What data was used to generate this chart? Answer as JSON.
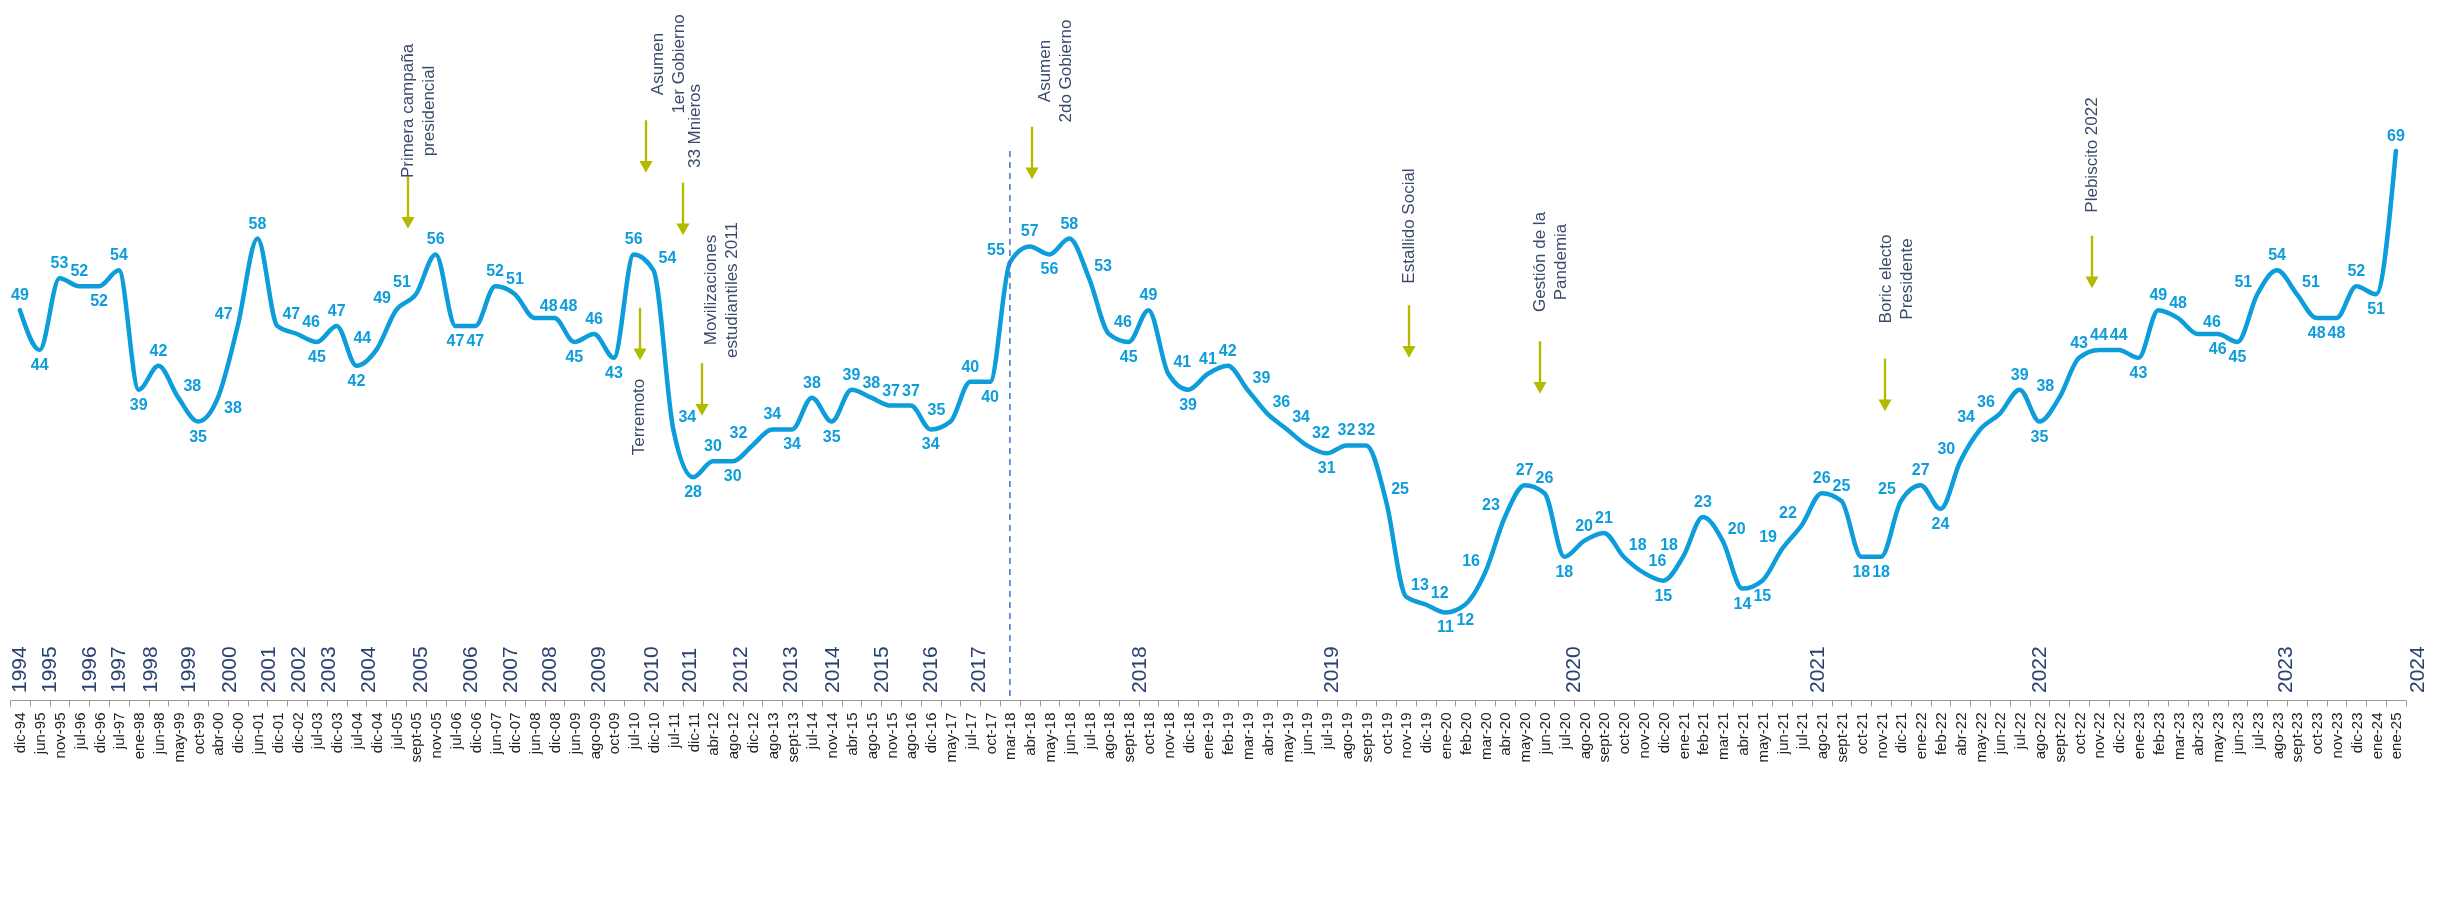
{
  "chart_data": {
    "type": "line",
    "color": "#0d9ddb",
    "data_labels": true,
    "line_style": "solid",
    "grid": false,
    "tick_labels": "x",
    "categories": [
      "dic-94",
      "jun-95",
      "nov-95",
      "jul-96",
      "dic-96",
      "jul-97",
      "ene-98",
      "jun-98",
      "may-99",
      "oct-99",
      "abr-00",
      "dic-00",
      "jun-01",
      "dic-01",
      "dic-02",
      "jul-03",
      "dic-03",
      "jul-04",
      "dic-04",
      "jul-05",
      "sept-05",
      "nov-05",
      "jul-06",
      "dic-06",
      "jun-07",
      "dic-07",
      "jun-08",
      "dic-08",
      "jun-09",
      "ago-09",
      "oct-09",
      "jul-10",
      "dic-10",
      "jul-11",
      "dic-11",
      "abr-12",
      "ago-12",
      "dic-12",
      "ago-13",
      "sept-13",
      "jul-14",
      "nov-14",
      "abr-15",
      "ago-15",
      "nov-15",
      "ago-16",
      "dic-16",
      "may-17",
      "jul-17",
      "oct-17",
      "mar-18",
      "abr-18",
      "may-18",
      "jun-18",
      "jul-18",
      "ago-18",
      "sept-18",
      "oct-18",
      "nov-18",
      "dic-18",
      "ene-19",
      "feb-19",
      "mar-19",
      "abr-19",
      "may-19",
      "jun-19",
      "jul-19",
      "ago-19",
      "sept-19",
      "oct-19",
      "nov-19",
      "dic-19",
      "ene-20",
      "feb-20",
      "mar-20",
      "abr-20",
      "may-20",
      "jun-20",
      "jul-20",
      "ago-20",
      "sept-20",
      "oct-20",
      "nov-20",
      "dic-20",
      "ene-21",
      "feb-21",
      "mar-21",
      "abr-21",
      "may-21",
      "jun-21",
      "jul-21",
      "ago-21",
      "sept-21",
      "oct-21",
      "nov-21",
      "dic-21",
      "ene-22",
      "feb-22",
      "abr-22",
      "may-22",
      "jun-22",
      "jul-22",
      "ago-22",
      "sept-22",
      "oct-22",
      "nov-22",
      "dic-22",
      "ene-23",
      "feb-23",
      "mar-23",
      "abr-23",
      "may-23",
      "jun-23",
      "jul-23",
      "ago-23",
      "sept-23",
      "oct-23",
      "nov-23",
      "dic-23",
      "ene-24",
      "ene-25"
    ],
    "values": [
      49,
      44,
      53,
      52,
      52,
      54,
      39,
      42,
      38,
      35,
      38,
      47,
      58,
      47,
      46,
      45,
      47,
      42,
      44,
      49,
      51,
      56,
      47,
      47,
      52,
      51,
      48,
      48,
      45,
      46,
      43,
      56,
      54,
      34,
      28,
      30,
      30,
      32,
      34,
      34,
      38,
      35,
      39,
      38,
      37,
      37,
      34,
      35,
      40,
      40,
      55,
      57,
      56,
      58,
      53,
      46,
      45,
      49,
      41,
      39,
      41,
      42,
      39,
      36,
      34,
      32,
      31,
      32,
      32,
      25,
      13,
      12,
      11,
      12,
      16,
      23,
      27,
      26,
      18,
      20,
      21,
      18,
      16,
      15,
      18,
      23,
      20,
      14,
      15,
      19,
      22,
      26,
      25,
      18,
      18,
      25,
      27,
      24,
      30,
      34,
      36,
      39,
      35,
      38,
      43,
      44,
      44,
      43,
      49,
      48,
      46,
      46,
      45,
      51,
      54,
      51,
      48,
      48,
      52,
      51,
      69
    ],
    "ref_lines": [
      {
        "axis": "x",
        "value": "mar-18",
        "color": "#4472c4",
        "line_style": "dashed"
      }
    ],
    "annotations": [
      "Primera campaña\npresidencial",
      "Asumen\n1er Gobierno",
      "33 Mnieros",
      "Terremoto",
      "Movilizaciones\nestudiantiles 2011",
      "Asumen\n2do Gobierno",
      "Estallido Social",
      "Gestión de la\nPandemia",
      "Boric electo\nPresidente",
      "Plebiscito 2022",
      "1994",
      "1995",
      "1996",
      "1997",
      "1998",
      "1999",
      "2000",
      "2001",
      "2002",
      "2003",
      "2004",
      "2005",
      "2006",
      "2007",
      "2008",
      "2009",
      "2010",
      "2011",
      "2012",
      "2013",
      "2014",
      "2015",
      "2016",
      "2017",
      "2018",
      "2019",
      "2020",
      "2021",
      "2022",
      "2023",
      "2024"
    ]
  }
}
